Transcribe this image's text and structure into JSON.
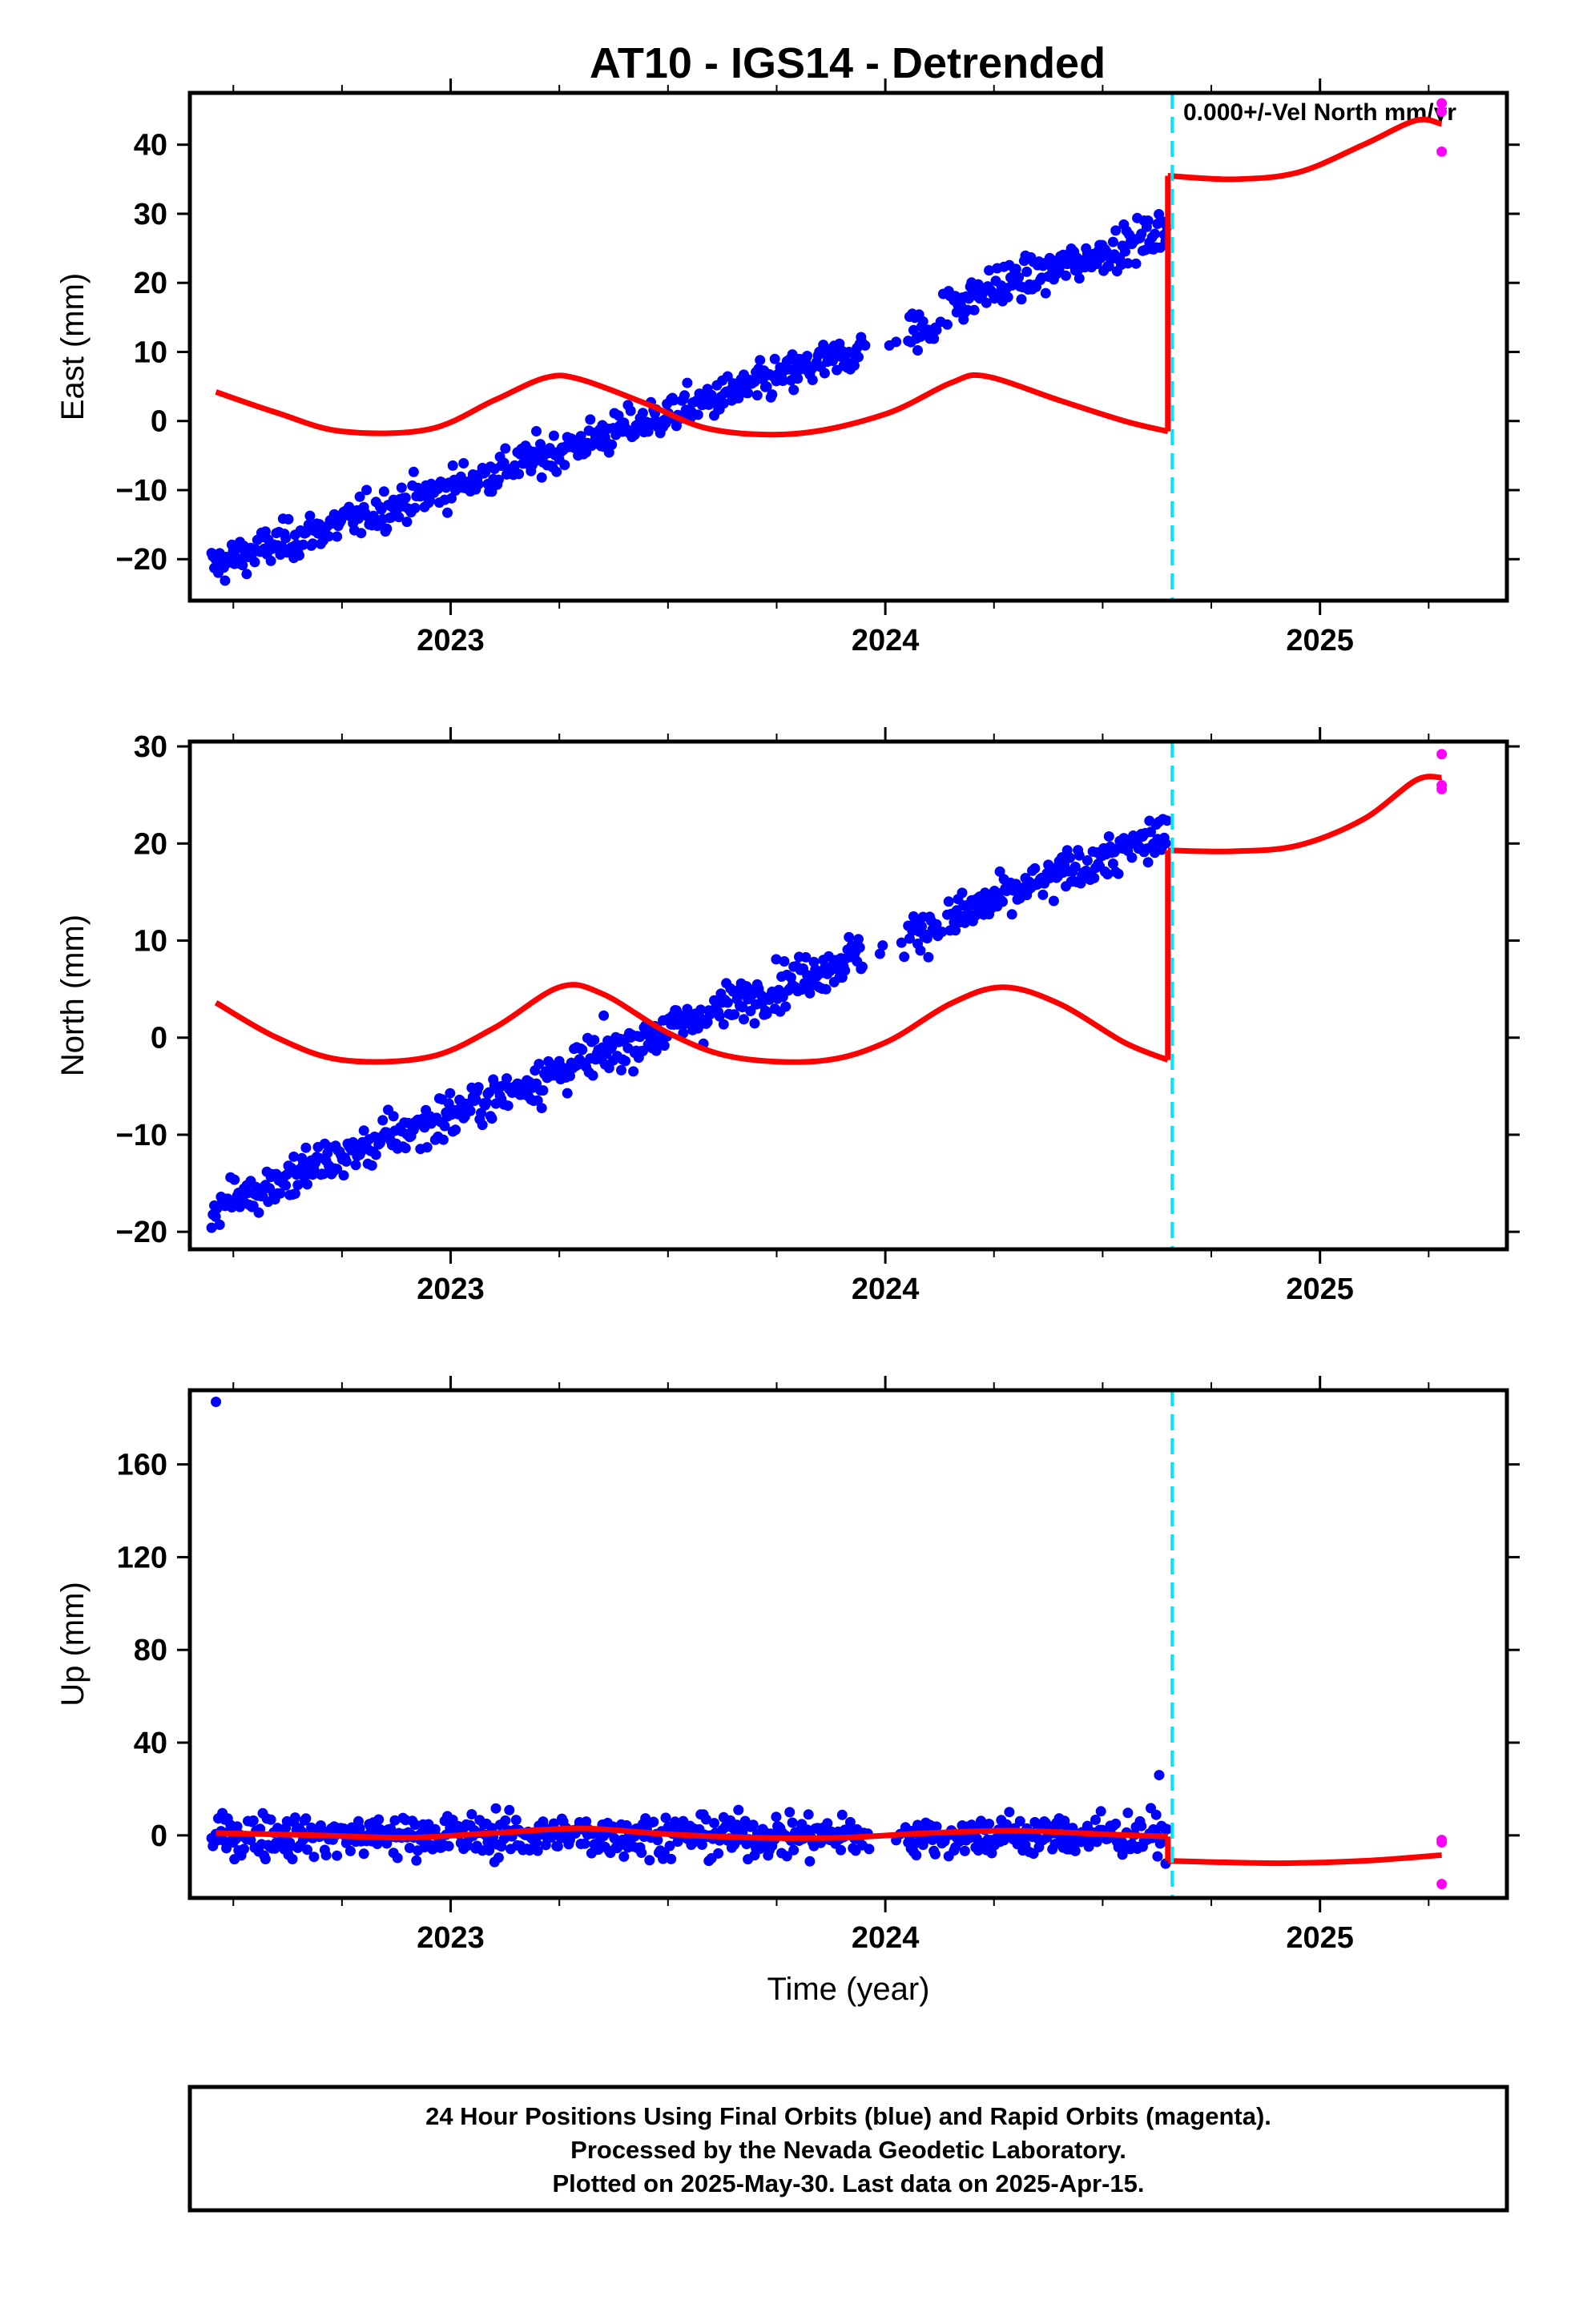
{
  "title": "AT10 - IGS14 - Detrended",
  "annotation": "0.000+/-Vel North mm/yr",
  "colors": {
    "final_orbits": "#0000ff",
    "rapid_orbits": "#ff00ff",
    "model": "#ff0000",
    "event_marker": "#00e5ff",
    "frame": "#000000"
  },
  "footer": {
    "line1": "24 Hour Positions Using Final Orbits (blue) and Rapid Orbits (magenta).",
    "line2": "Processed by the Nevada Geodetic Laboratory.",
    "line3": "Plotted on 2025-May-30. Last data on 2025-Apr-15."
  },
  "chart_data": [
    {
      "type": "scatter",
      "panel": "east",
      "ylabel": "East (mm)",
      "xlabel": "",
      "xlim": [
        2022.4,
        2025.43
      ],
      "ylim": [
        -26,
        47.5
      ],
      "yticks": [
        -20,
        -10,
        0,
        10,
        20,
        30,
        40
      ],
      "ytick_labels": [
        "−20",
        "−10",
        "0",
        "10",
        "20",
        "30",
        "40"
      ],
      "xticks": [
        2023,
        2024,
        2025
      ],
      "xtick_labels": [
        "2023",
        "2024",
        "2025"
      ],
      "event_line_x": 2024.66,
      "final_trend": {
        "start": [
          2022.45,
          -21.0
        ],
        "end": [
          2024.65,
          25.0
        ],
        "scatter_sd": 2.0
      },
      "final_offsets": [
        [
          2024.13,
          2024.2,
          2.5
        ]
      ],
      "rapid_points": [
        [
          2025.28,
          46.0
        ],
        [
          2025.28,
          44.8
        ],
        [
          2025.28,
          39.0
        ]
      ],
      "model_segments": [
        [
          [
            2022.46,
            4.2
          ],
          [
            2022.6,
            1.2
          ],
          [
            2022.75,
            -1.5
          ],
          [
            2022.95,
            -1.2
          ],
          [
            2023.1,
            3.0
          ],
          [
            2023.22,
            6.3
          ],
          [
            2023.3,
            6.0
          ],
          [
            2023.45,
            2.5
          ],
          [
            2023.6,
            -1.2
          ],
          [
            2023.8,
            -1.8
          ],
          [
            2024.0,
            1.0
          ],
          [
            2024.15,
            5.5
          ],
          [
            2024.23,
            6.5
          ],
          [
            2024.4,
            3.0
          ],
          [
            2024.55,
            0.0
          ],
          [
            2024.65,
            -1.5
          ]
        ],
        [
          [
            2024.65,
            -1.5
          ],
          [
            2024.65,
            35.5
          ]
        ],
        [
          [
            2024.65,
            35.5
          ],
          [
            2024.8,
            35.0
          ],
          [
            2024.95,
            36.0
          ],
          [
            2025.1,
            40.0
          ],
          [
            2025.22,
            43.5
          ],
          [
            2025.28,
            43.0
          ]
        ]
      ]
    },
    {
      "type": "scatter",
      "panel": "north",
      "ylabel": "North (mm)",
      "xlabel": "",
      "xlim": [
        2022.4,
        2025.43
      ],
      "ylim": [
        -21.8,
        30.5
      ],
      "yticks": [
        -20,
        -10,
        0,
        10,
        20,
        30
      ],
      "ytick_labels": [
        "−20",
        "−10",
        "0",
        "10",
        "20",
        "30"
      ],
      "xticks": [
        2023,
        2024,
        2025
      ],
      "xtick_labels": [
        "2023",
        "2024",
        "2025"
      ],
      "event_line_x": 2024.66,
      "final_trend": {
        "start": [
          2022.45,
          -17.5
        ],
        "end": [
          2024.65,
          21.0
        ],
        "scatter_sd": 1.6
      },
      "final_offsets": [],
      "rapid_points": [
        [
          2025.28,
          29.2
        ],
        [
          2025.28,
          26.0
        ],
        [
          2025.28,
          25.6
        ]
      ],
      "model_segments": [
        [
          [
            2022.46,
            3.6
          ],
          [
            2022.6,
            0.0
          ],
          [
            2022.75,
            -2.3
          ],
          [
            2022.95,
            -2.0
          ],
          [
            2023.1,
            1.0
          ],
          [
            2023.25,
            5.2
          ],
          [
            2023.35,
            4.5
          ],
          [
            2023.5,
            0.5
          ],
          [
            2023.65,
            -2.0
          ],
          [
            2023.85,
            -2.4
          ],
          [
            2024.0,
            -0.5
          ],
          [
            2024.15,
            3.5
          ],
          [
            2024.27,
            5.2
          ],
          [
            2024.4,
            3.5
          ],
          [
            2024.55,
            -0.5
          ],
          [
            2024.65,
            -2.3
          ]
        ],
        [
          [
            2024.65,
            -2.3
          ],
          [
            2024.65,
            19.3
          ]
        ],
        [
          [
            2024.65,
            19.3
          ],
          [
            2024.8,
            19.2
          ],
          [
            2024.95,
            19.8
          ],
          [
            2025.1,
            22.5
          ],
          [
            2025.22,
            26.5
          ],
          [
            2025.28,
            26.8
          ]
        ]
      ]
    },
    {
      "type": "scatter",
      "panel": "up",
      "ylabel": "Up (mm)",
      "xlabel": "Time (year)",
      "xlim": [
        2022.4,
        2025.43
      ],
      "ylim": [
        -27,
        192
      ],
      "yticks": [
        0,
        40,
        80,
        120,
        160
      ],
      "ytick_labels": [
        "0",
        "40",
        "80",
        "120",
        "160"
      ],
      "xticks": [
        2023,
        2024,
        2025
      ],
      "xtick_labels": [
        "2023",
        "2024",
        "2025"
      ],
      "event_line_x": 2024.66,
      "final_trend": {
        "start": [
          2022.45,
          0.0
        ],
        "end": [
          2024.65,
          0.0
        ],
        "scatter_sd": 6.5
      },
      "final_outliers": [
        [
          2022.46,
          187.0
        ],
        [
          2024.63,
          26.0
        ]
      ],
      "rapid_points": [
        [
          2025.28,
          -3.0
        ],
        [
          2025.28,
          -2.0
        ],
        [
          2025.28,
          -21.0
        ]
      ],
      "model_segments": [
        [
          [
            2022.46,
            1.0
          ],
          [
            2022.7,
            0.0
          ],
          [
            2022.9,
            -1.0
          ],
          [
            2023.1,
            1.0
          ],
          [
            2023.3,
            3.0
          ],
          [
            2023.5,
            0.5
          ],
          [
            2023.7,
            -1.0
          ],
          [
            2023.9,
            -1.0
          ],
          [
            2024.1,
            1.0
          ],
          [
            2024.3,
            2.0
          ],
          [
            2024.5,
            0.5
          ],
          [
            2024.65,
            -0.5
          ]
        ],
        [
          [
            2024.65,
            -0.5
          ],
          [
            2024.65,
            -11.0
          ]
        ],
        [
          [
            2024.65,
            -11.0
          ],
          [
            2024.9,
            -12.0
          ],
          [
            2025.1,
            -11.0
          ],
          [
            2025.28,
            -8.5
          ]
        ]
      ]
    }
  ]
}
